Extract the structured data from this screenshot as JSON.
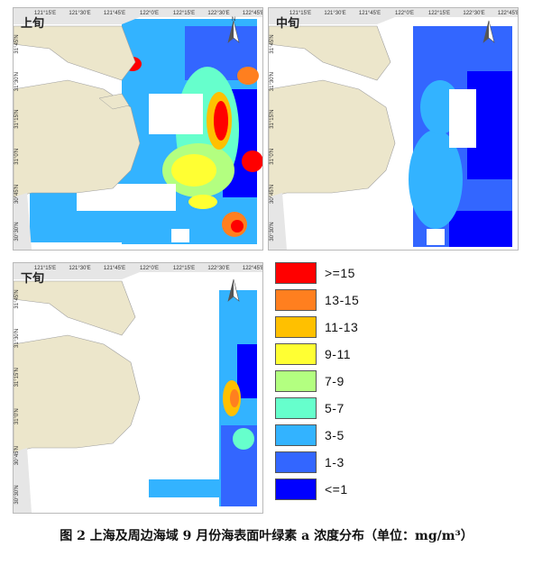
{
  "panels": [
    {
      "title": "上旬"
    },
    {
      "title": "中旬"
    },
    {
      "title": "下旬"
    }
  ],
  "axis": {
    "lon_ticks": [
      "121°15'E",
      "121°30'E",
      "121°45'E",
      "122°0'E",
      "122°15'E",
      "122°30'E",
      "122°45'E"
    ],
    "lat_ticks": [
      "31°45'N",
      "31°30'N",
      "31°15'N",
      "31°0'N",
      "30°45'N",
      "30°30'N"
    ]
  },
  "north_arrow": {
    "label": "N"
  },
  "legend": [
    {
      "label": ">=15",
      "color": "#ff0000"
    },
    {
      "label": "13-15",
      "color": "#ff7f1f"
    },
    {
      "label": "11-13",
      "color": "#ffc000"
    },
    {
      "label": "9-11",
      "color": "#ffff33"
    },
    {
      "label": "7-9",
      "color": "#b3ff80"
    },
    {
      "label": "5-7",
      "color": "#66ffcc"
    },
    {
      "label": "3-5",
      "color": "#33b3ff"
    },
    {
      "label": "1-3",
      "color": "#3366ff"
    },
    {
      "label": "<=1",
      "color": "#0000ff"
    }
  ],
  "caption": "图 2 上海及周边海域 9 月份海表面叶绿素 a 浓度分布（单位：mg/m³）"
}
